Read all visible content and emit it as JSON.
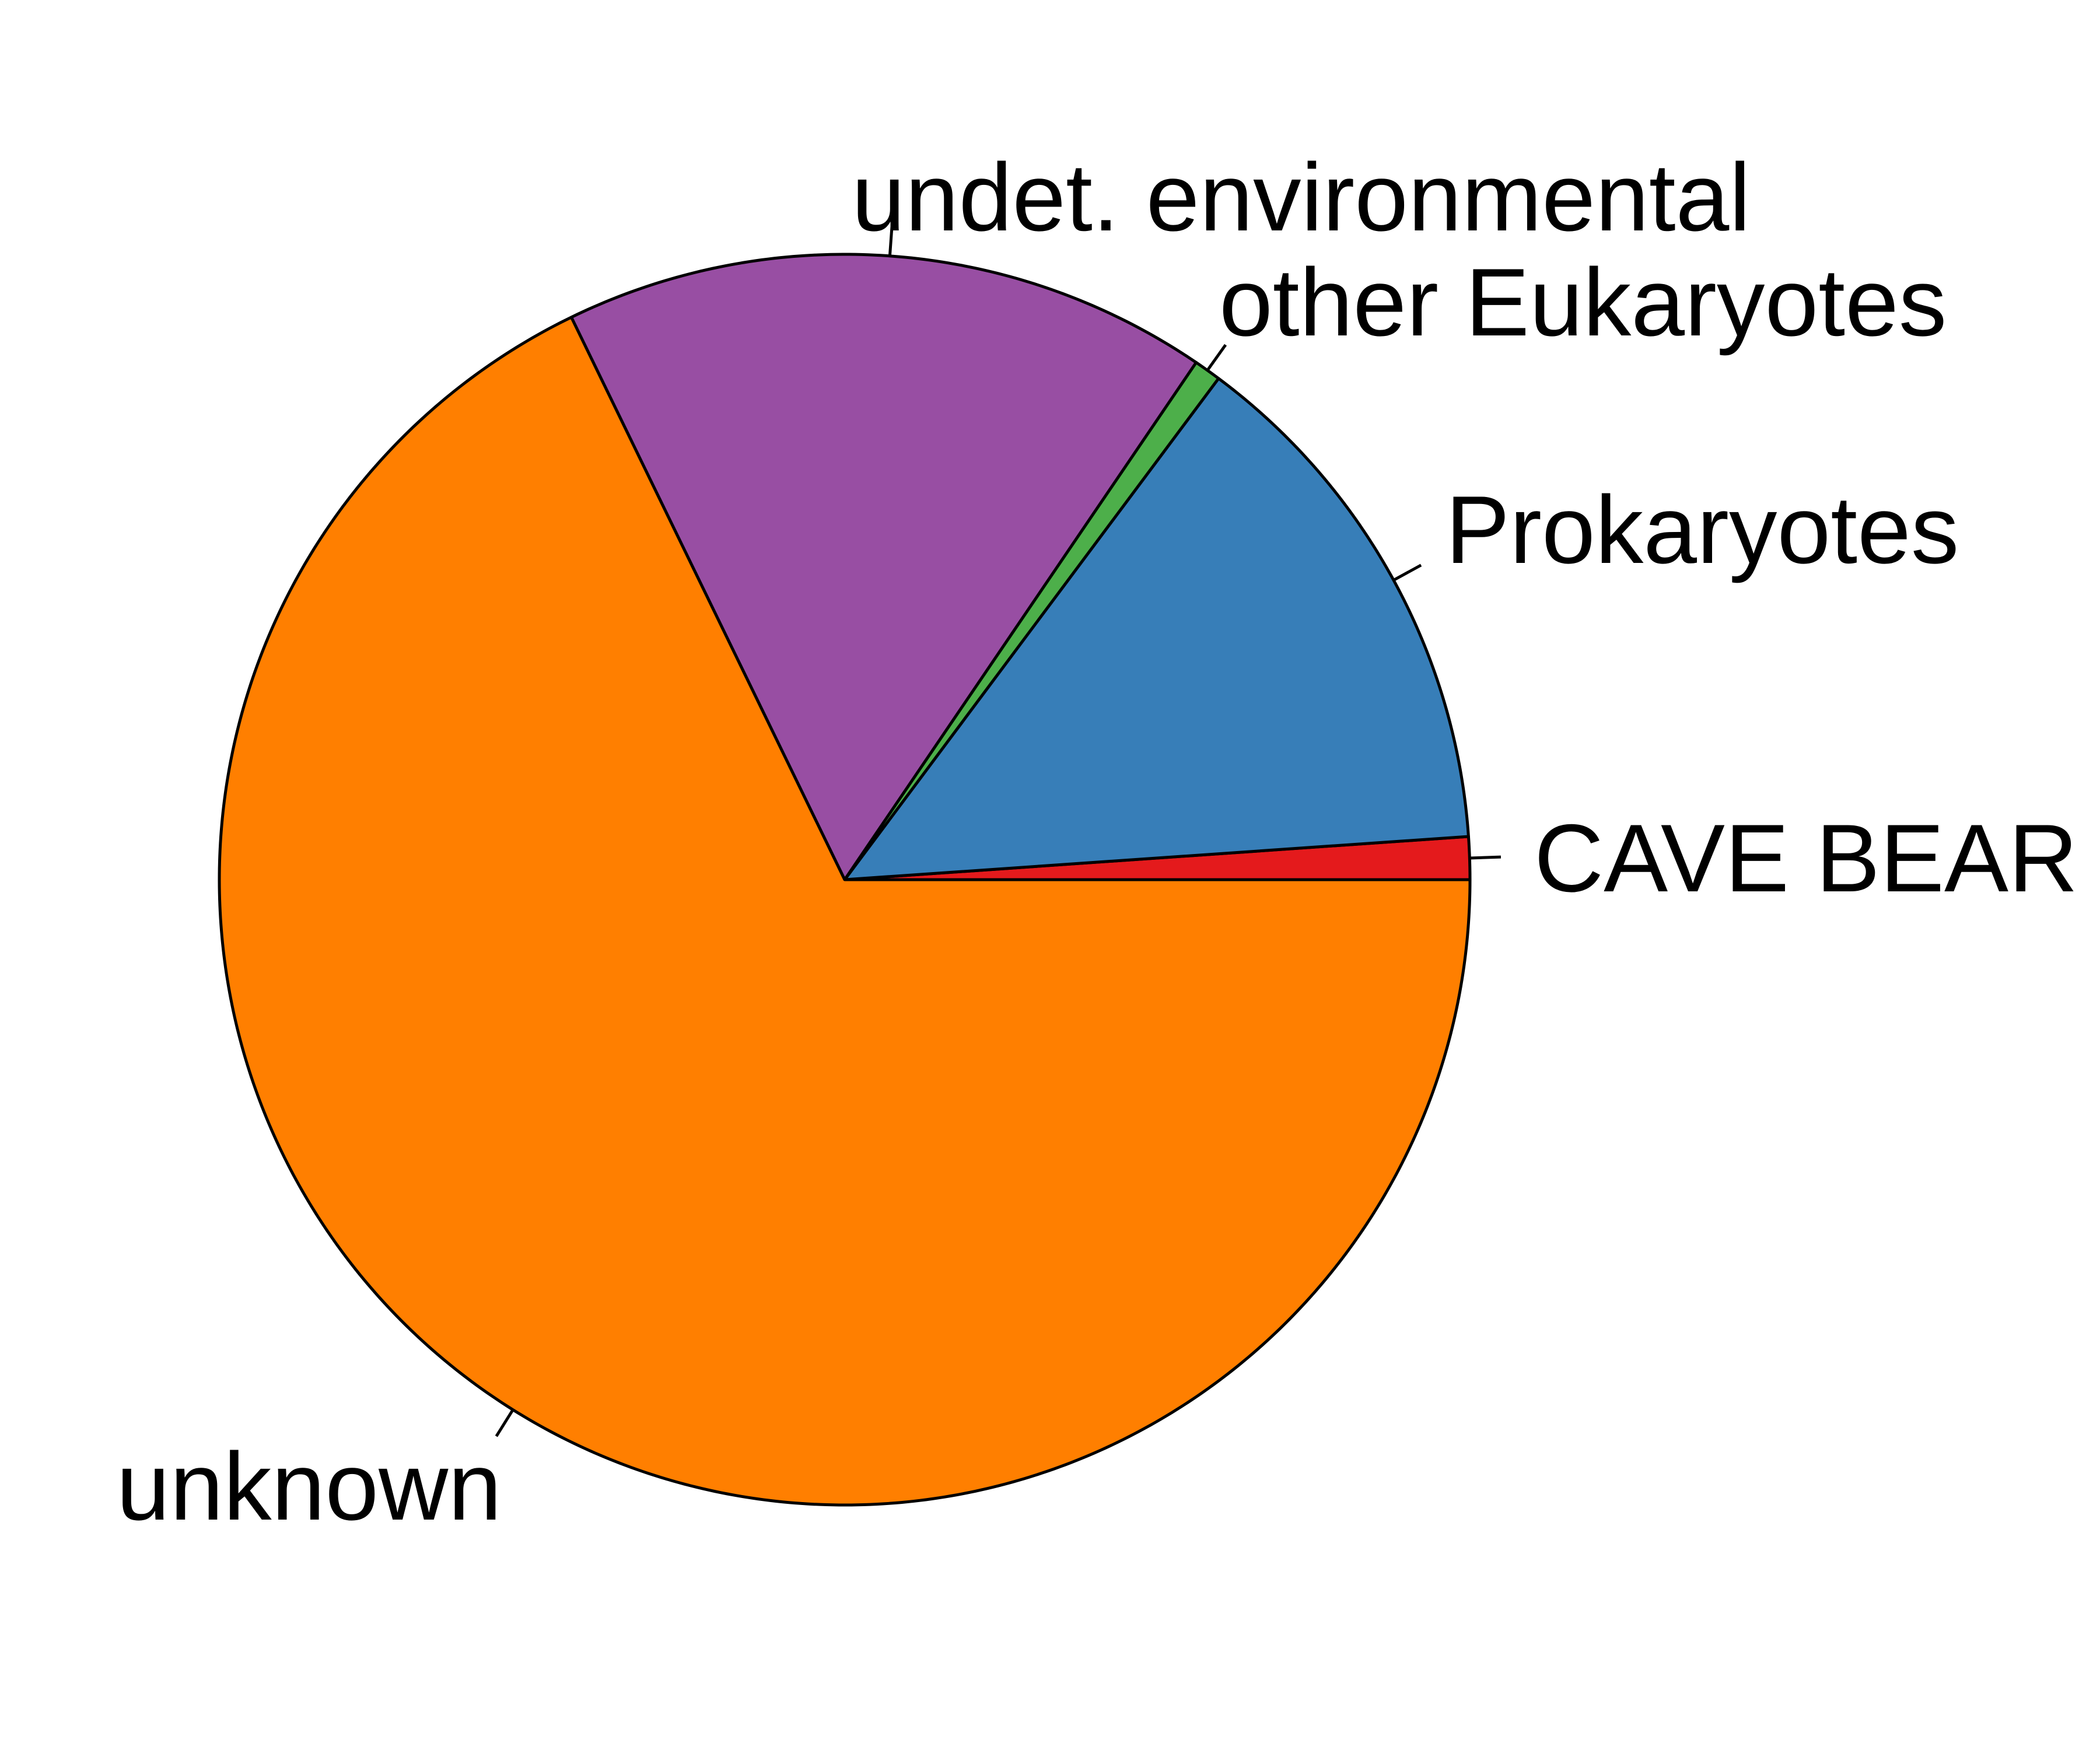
{
  "chart_data": {
    "type": "pie",
    "start": "3 o'clock",
    "direction": "counterclockwise",
    "slices": [
      {
        "label": "CAVE BEAR",
        "value": 1.1,
        "color": "#E41A1C"
      },
      {
        "label": "Prokaryotes",
        "value": 13.7,
        "color": "#377EB8"
      },
      {
        "label": "other Eukaryotes",
        "value": 0.7,
        "color": "#4DAF4A"
      },
      {
        "label": "undet. environmental",
        "value": 16.7,
        "color": "#984EA3"
      },
      {
        "label": "unknown",
        "value": 67.8,
        "color": "#FF7F00"
      }
    ]
  }
}
